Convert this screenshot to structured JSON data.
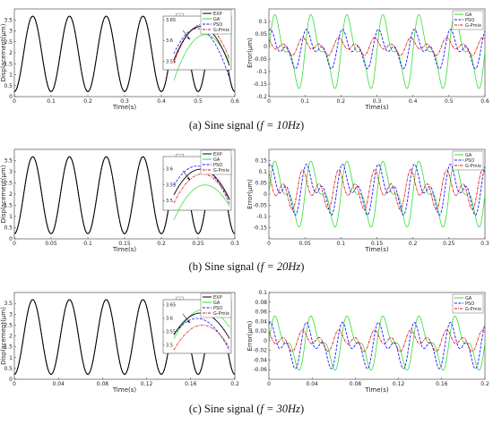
{
  "colors": {
    "EXP": "#000000",
    "GA": "#33dd33",
    "PSO": "#1a1aff",
    "G-Pmix": "#e01010"
  },
  "captions": [
    {
      "label": "(a) Sine signal (",
      "eq": "f = 10Hz",
      "end": ")"
    },
    {
      "label": "(b) Sine signal (",
      "eq": "f = 20Hz",
      "end": ")"
    },
    {
      "label": "(c) Sine signal (",
      "eq": "f = 30Hz",
      "end": ")"
    }
  ],
  "chart_data": [
    {
      "type": "line",
      "panel": "a-left",
      "xlabel": "Time(s)",
      "ylabel": "Displacement(μm)",
      "xlim": [
        0,
        0.6
      ],
      "ylim": [
        0,
        4
      ],
      "xticks": [
        "0",
        "0.1",
        "0.2",
        "0.3",
        "0.4",
        "0.5",
        "0.6"
      ],
      "yticks": [
        "0",
        "0.5",
        "1",
        "1.5",
        "2",
        "2.5",
        "3",
        "3.5"
      ],
      "frequency_hz": 10,
      "series": [
        {
          "name": "EXP"
        },
        {
          "name": "GA"
        },
        {
          "name": "PSO"
        },
        {
          "name": "G-Pmix"
        }
      ],
      "signal": {
        "offset": 1.95,
        "amplitude": 1.72,
        "phase_deg": -90
      },
      "inset": {
        "yticks": [
          "3.55",
          "3.6",
          "3.65"
        ],
        "ylim": [
          3.53,
          3.66
        ],
        "peaks": {
          "EXP": 3.635,
          "GA": 3.615,
          "PSO": 3.63,
          "G-Pmix": 3.64
        }
      }
    },
    {
      "type": "line",
      "panel": "a-right",
      "xlabel": "Time(s)",
      "ylabel": "Error(μm)",
      "xlim": [
        0,
        0.6
      ],
      "ylim": [
        -0.2,
        0.15
      ],
      "xticks": [
        "0",
        "0.1",
        "0.2",
        "0.3",
        "0.4",
        "0.5",
        "0.6"
      ],
      "yticks": [
        "-0.2",
        "-0.15",
        "-0.1",
        "-0.05",
        "0",
        "0.05",
        "0.1"
      ],
      "frequency_hz": 10,
      "series": [
        {
          "name": "GA",
          "amp": 0.17,
          "mean": -0.02
        },
        {
          "name": "PSO",
          "amp": 0.09,
          "mean": -0.01
        },
        {
          "name": "G-Pmix",
          "amp": 0.04,
          "mean": 0.0
        }
      ]
    },
    {
      "type": "line",
      "panel": "b-left",
      "xlabel": "Time(s)",
      "ylabel": "Displacement(μm)",
      "xlim": [
        0,
        0.3
      ],
      "ylim": [
        0,
        4
      ],
      "xticks": [
        "0",
        "0.05",
        "0.1",
        "0.15",
        "0.2",
        "0.25",
        "0.3"
      ],
      "yticks": [
        "0",
        "0.5",
        "1",
        "1.5",
        "2",
        "2.5",
        "3",
        "3.5"
      ],
      "frequency_hz": 20,
      "series": [
        {
          "name": "EXP"
        },
        {
          "name": "GA"
        },
        {
          "name": "PSO"
        },
        {
          "name": "G-Pmix"
        }
      ],
      "signal": {
        "offset": 1.95,
        "amplitude": 1.72,
        "phase_deg": -90
      },
      "inset": {
        "yticks": [
          "3.5",
          "3.55",
          "3.6"
        ],
        "ylim": [
          3.47,
          3.64
        ],
        "peaks": {
          "EXP": 3.6,
          "GA": 3.55,
          "PSO": 3.61,
          "G-Pmix": 3.585
        }
      }
    },
    {
      "type": "line",
      "panel": "b-right",
      "xlabel": "Time(s)",
      "ylabel": "Error(μm)",
      "xlim": [
        0,
        0.3
      ],
      "ylim": [
        -0.2,
        0.2
      ],
      "xticks": [
        "0",
        "0.05",
        "0.1",
        "0.15",
        "0.2",
        "0.25",
        "0.3"
      ],
      "yticks": [
        "-0.15",
        "-0.1",
        "-0.05",
        "0",
        "0.05",
        "0.1",
        "0.15"
      ],
      "frequency_hz": 20,
      "series": [
        {
          "name": "GA",
          "amp": 0.17,
          "mean": 0.0
        },
        {
          "name": "PSO",
          "amp": 0.13,
          "mean": 0.02
        },
        {
          "name": "G-Pmix",
          "amp": 0.1,
          "mean": 0.02
        }
      ]
    },
    {
      "type": "line",
      "panel": "c-left",
      "xlabel": "Time(s)",
      "ylabel": "Displacement(μm)",
      "xlim": [
        0,
        0.2
      ],
      "ylim": [
        0,
        4
      ],
      "xticks": [
        "0",
        "0.04",
        "0.08",
        "0.12",
        "0.16",
        "0.2"
      ],
      "yticks": [
        "0",
        "0.5",
        "1",
        "1.5",
        "2",
        "2.5",
        "3",
        "3.5"
      ],
      "frequency_hz": 30,
      "series": [
        {
          "name": "EXP"
        },
        {
          "name": "GA"
        },
        {
          "name": "PSO"
        },
        {
          "name": "G-Pmix"
        }
      ],
      "signal": {
        "offset": 1.95,
        "amplitude": 1.72,
        "phase_deg": -90
      },
      "inset": {
        "yticks": [
          "3.5",
          "3.55",
          "3.6",
          "3.65"
        ],
        "ylim": [
          3.47,
          3.67
        ],
        "peaks": {
          "EXP": 3.62,
          "GA": 3.635,
          "PSO": 3.6,
          "G-Pmix": 3.575
        }
      }
    },
    {
      "type": "line",
      "panel": "c-right",
      "xlabel": "Time(s)",
      "ylabel": "Error(μm)",
      "xlim": [
        0,
        0.2
      ],
      "ylim": [
        -0.08,
        0.1
      ],
      "xticks": [
        "0",
        "0.04",
        "0.08",
        "0.12",
        "0.16",
        "0.2"
      ],
      "yticks": [
        "-0.06",
        "-0.04",
        "-0.02",
        "0",
        "0.02",
        "0.04",
        "0.06",
        "0.08",
        "0.1"
      ],
      "frequency_hz": 30,
      "series": [
        {
          "name": "GA",
          "amp": 0.065,
          "mean": -0.005
        },
        {
          "name": "PSO",
          "amp": 0.055,
          "mean": -0.01
        },
        {
          "name": "G-Pmix",
          "amp": 0.025,
          "mean": 0.0
        }
      ]
    }
  ]
}
